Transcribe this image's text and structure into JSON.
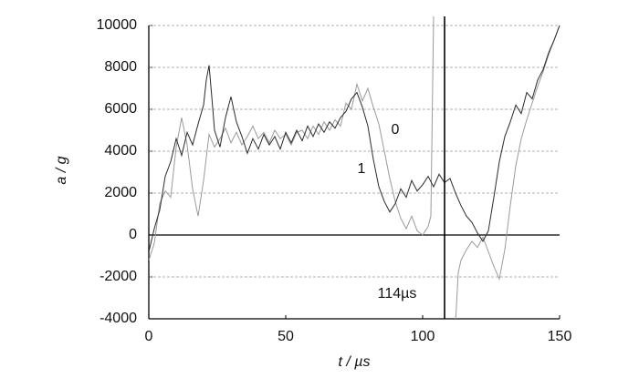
{
  "chart_data": {
    "type": "line",
    "ylabel": "a / g",
    "xlabel": "t / µs",
    "xlim": [
      0,
      150
    ],
    "xticks": [
      0,
      50,
      100,
      150
    ],
    "ylim": [
      -4000,
      10000
    ],
    "yticks": [
      -4000,
      -2000,
      0,
      2000,
      4000,
      6000,
      8000,
      10000
    ],
    "grid": true,
    "vline": 108,
    "annotation": "114µs",
    "series": [
      {
        "name": "0",
        "color": "#9a9a9a",
        "x": [
          0,
          2,
          4,
          6,
          8,
          10,
          12,
          14,
          16,
          18,
          20,
          22,
          24,
          26,
          28,
          30,
          32,
          34,
          36,
          38,
          40,
          42,
          44,
          46,
          48,
          50,
          52,
          54,
          56,
          58,
          60,
          62,
          64,
          66,
          68,
          70,
          72,
          74,
          76,
          78,
          80,
          82,
          84,
          86,
          88,
          90,
          92,
          94,
          96,
          98,
          100,
          102,
          103,
          104,
          108,
          112,
          113,
          114,
          116,
          118,
          120,
          122,
          124,
          126,
          128,
          130,
          132,
          134,
          136,
          138,
          140,
          142,
          144,
          146,
          148,
          150
        ],
        "values": [
          -1200,
          -400,
          1500,
          2100,
          1800,
          4200,
          5600,
          4300,
          2200,
          900,
          2600,
          4800,
          4200,
          4600,
          5100,
          4400,
          4900,
          4300,
          4700,
          5200,
          4600,
          4900,
          4400,
          5000,
          4600,
          4800,
          4300,
          4900,
          5000,
          4600,
          5200,
          4800,
          5400,
          5000,
          5500,
          5200,
          6300,
          6000,
          7200,
          6400,
          7000,
          6100,
          5300,
          4000,
          2700,
          1600,
          800,
          300,
          900,
          200,
          0,
          400,
          900,
          10500,
          null,
          -4200,
          -1800,
          -1200,
          -700,
          -300,
          -600,
          -100,
          -800,
          -1500,
          -2100,
          -700,
          1400,
          3300,
          4600,
          5500,
          6300,
          7100,
          7800,
          8600,
          9300,
          10000
        ]
      },
      {
        "name": "1",
        "color": "#2a2a2a",
        "x": [
          0,
          2,
          4,
          6,
          8,
          10,
          12,
          14,
          16,
          18,
          20,
          21,
          22,
          23,
          24,
          26,
          28,
          30,
          32,
          34,
          36,
          38,
          40,
          42,
          44,
          46,
          48,
          50,
          52,
          54,
          56,
          58,
          60,
          62,
          64,
          66,
          68,
          70,
          72,
          74,
          76,
          78,
          80,
          82,
          84,
          86,
          88,
          90,
          92,
          94,
          96,
          98,
          100,
          102,
          104,
          106,
          108,
          110,
          112,
          114,
          116,
          118,
          120,
          122,
          124,
          126,
          128,
          130,
          132,
          134,
          136,
          138,
          140,
          142,
          144,
          146,
          148,
          150
        ],
        "values": [
          -800,
          300,
          1200,
          2800,
          3500,
          4600,
          3800,
          4900,
          4300,
          5300,
          6200,
          7400,
          8100,
          6600,
          5000,
          4200,
          5600,
          6600,
          5400,
          4700,
          3900,
          4600,
          4100,
          4800,
          4300,
          4700,
          4100,
          4900,
          4400,
          5000,
          4500,
          5200,
          4700,
          5300,
          4900,
          5400,
          5100,
          5600,
          5900,
          6500,
          6800,
          6100,
          5200,
          3600,
          2300,
          1600,
          1100,
          1500,
          2200,
          1800,
          2600,
          2100,
          2400,
          2800,
          2300,
          2900,
          2500,
          2700,
          2000,
          1400,
          900,
          600,
          100,
          -300,
          200,
          1800,
          3500,
          4700,
          5400,
          6200,
          5800,
          6800,
          6500,
          7400,
          7900,
          8700,
          9300,
          10000
        ]
      }
    ]
  }
}
